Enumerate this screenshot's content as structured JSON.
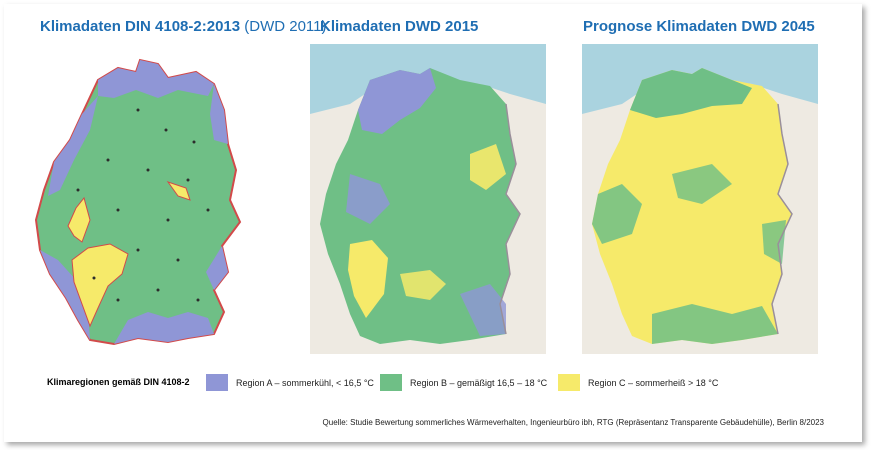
{
  "titles": {
    "din": "Klimadaten DIN 4108-2:2013",
    "din_sub": "(DWD 2011)",
    "dwd2015": "Klimadaten DWD 2015",
    "dwd2045": "Prognose Klimadaten DWD 2045"
  },
  "colors": {
    "region_a": "#8f96d6",
    "region_b": "#6fbf86",
    "region_c": "#f6ea6a",
    "water": "#aad3df",
    "land": "#eeeae2",
    "title": "#1f6eb3"
  },
  "legend": {
    "title": "Klimaregionen gemäß DIN 4108-2",
    "items": [
      {
        "label": "Region A – sommerkühl, < 16,5 °C"
      },
      {
        "label": "Region B – gemäßigt 16,5 – 18 °C"
      },
      {
        "label": "Region C – sommerheiß > 18 °C"
      }
    ]
  },
  "source": "Quelle: Studie Bewertung sommerliches Wärmeverhalten, Ingenieurbüro ibh, RTG (Repräsentanz Transparente Gebäudehülle), Berlin 8/2023"
}
